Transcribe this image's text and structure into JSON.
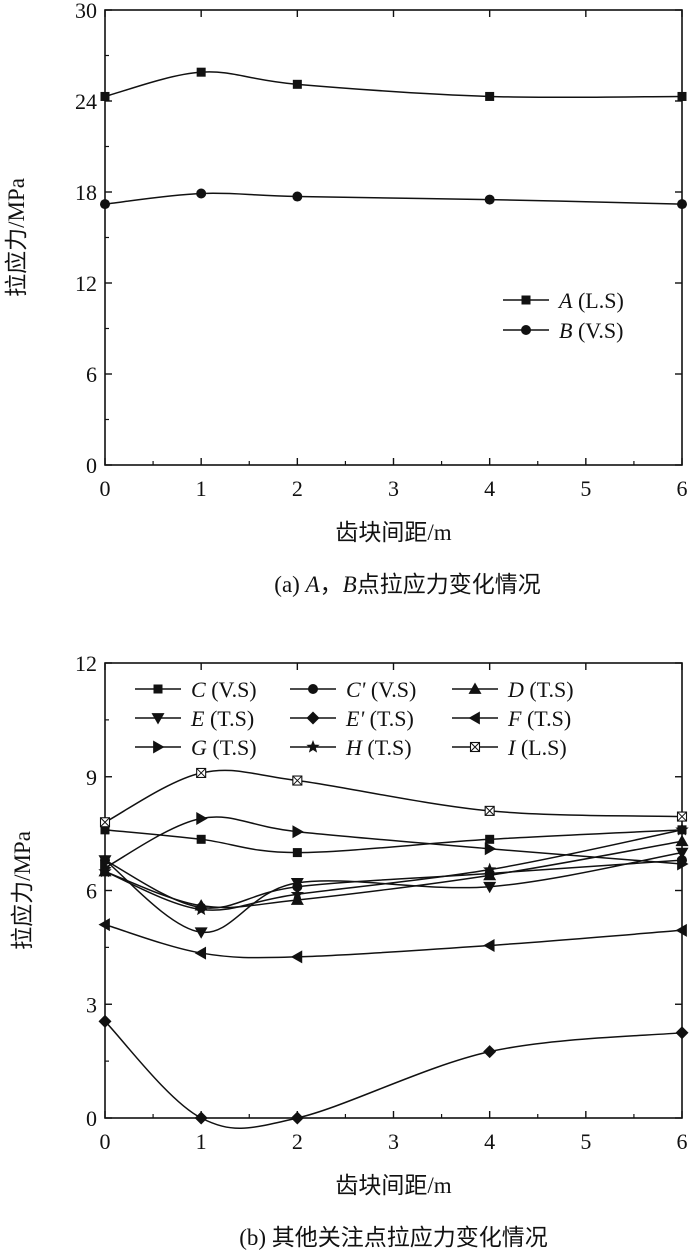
{
  "chart_data": [
    {
      "type": "line",
      "xlabel": "齿块间距/m",
      "ylabel": "拉应力/MPa",
      "caption": {
        "prefix": "(a) ",
        "a": "A",
        "sep": "，",
        "b": "B",
        "rest": "点拉应力变化情况"
      },
      "xlim": [
        0,
        6
      ],
      "ylim": [
        0,
        30
      ],
      "xticks": [
        "0",
        "1",
        "2",
        "3",
        "4",
        "5",
        "6"
      ],
      "yticks": [
        "0",
        "6",
        "12",
        "18",
        "24",
        "30"
      ],
      "legend_position": "right-middle",
      "series": [
        {
          "name": "A",
          "label_suffix": " (L.S)",
          "marker": "square",
          "x": [
            0,
            1,
            2,
            4,
            6
          ],
          "y": [
            24.3,
            25.9,
            25.1,
            24.3,
            24.3
          ]
        },
        {
          "name": "B",
          "label_suffix": " (V.S)",
          "marker": "circle",
          "x": [
            0,
            1,
            2,
            4,
            6
          ],
          "y": [
            17.2,
            17.9,
            17.7,
            17.5,
            17.2
          ]
        }
      ]
    },
    {
      "type": "line",
      "xlabel": "齿块间距/m",
      "ylabel": "拉应力/MPa",
      "caption": {
        "text": "(b)  其他关注点拉应力变化情况"
      },
      "xlim": [
        0,
        6
      ],
      "ylim": [
        0,
        12
      ],
      "xticks": [
        "0",
        "1",
        "2",
        "3",
        "4",
        "5",
        "6"
      ],
      "yticks": [
        "0",
        "3",
        "6",
        "9",
        "12"
      ],
      "legend_position": "top-left",
      "series": [
        {
          "name": "C",
          "label_suffix": " (V.S)",
          "marker": "square",
          "x": [
            0,
            1,
            2,
            4,
            6
          ],
          "y": [
            7.6,
            7.35,
            7.0,
            7.35,
            7.6
          ]
        },
        {
          "name": "C'",
          "label_suffix": " (V.S)",
          "marker": "circle",
          "x": [
            0,
            1,
            2,
            4,
            6
          ],
          "y": [
            6.8,
            5.55,
            6.1,
            6.45,
            6.8
          ]
        },
        {
          "name": "D",
          "label_suffix": " (T.S)",
          "marker": "triangle-up",
          "x": [
            0,
            1,
            2,
            4,
            6
          ],
          "y": [
            6.5,
            5.6,
            5.75,
            6.4,
            7.3
          ]
        },
        {
          "name": "E",
          "label_suffix": " (T.S)",
          "marker": "triangle-down",
          "x": [
            0,
            1,
            2,
            4,
            6
          ],
          "y": [
            6.8,
            4.9,
            6.2,
            6.1,
            7.0
          ]
        },
        {
          "name": "E'",
          "label_suffix": " (T.S)",
          "marker": "diamond",
          "x": [
            0,
            1,
            2,
            4,
            6
          ],
          "y": [
            2.55,
            0.0,
            0.0,
            1.75,
            2.25
          ]
        },
        {
          "name": "F",
          "label_suffix": " (T.S)",
          "marker": "triangle-left",
          "x": [
            0,
            1,
            2,
            4,
            6
          ],
          "y": [
            5.1,
            4.35,
            4.25,
            4.55,
            4.95
          ]
        },
        {
          "name": "G",
          "label_suffix": " (T.S)",
          "marker": "triangle-right",
          "x": [
            0,
            1,
            2,
            4,
            6
          ],
          "y": [
            6.6,
            7.9,
            7.55,
            7.1,
            6.7
          ]
        },
        {
          "name": "H",
          "label_suffix": " (T.S)",
          "marker": "star",
          "x": [
            0,
            1,
            2,
            4,
            6
          ],
          "y": [
            6.5,
            5.5,
            5.9,
            6.55,
            7.6
          ]
        },
        {
          "name": "I",
          "label_suffix": "  (L.S)",
          "marker": "boxed-x",
          "x": [
            0,
            1,
            2,
            4,
            6
          ],
          "y": [
            7.8,
            9.1,
            8.9,
            8.1,
            7.95
          ]
        }
      ]
    }
  ]
}
